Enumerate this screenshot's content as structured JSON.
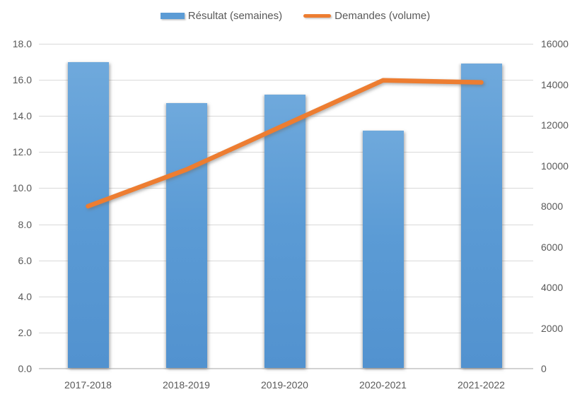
{
  "chart_data": {
    "type": "combo",
    "title": "",
    "categories": [
      "2017-2018",
      "2018-2019",
      "2019-2020",
      "2020-2021",
      "2021-2022"
    ],
    "series": [
      {
        "name": "Résultat (semaines)",
        "type": "bar",
        "axis": "left",
        "color": "#5B9BD5",
        "values": [
          17.0,
          14.7,
          15.2,
          13.2,
          16.9
        ]
      },
      {
        "name": "Demandes (volume)",
        "type": "line",
        "axis": "right",
        "color": "#ED7D31",
        "values": [
          8000,
          9800,
          12000,
          14200,
          14100
        ]
      }
    ],
    "left_axis": {
      "min": 0,
      "max": 18,
      "step": 2,
      "ticks": [
        "18.0",
        "16.0",
        "14.0",
        "12.0",
        "10.0",
        "8.0",
        "6.0",
        "4.0",
        "2.0",
        "0.0"
      ]
    },
    "right_axis": {
      "min": 0,
      "max": 16000,
      "step": 2000,
      "ticks": [
        "16000",
        "14000",
        "12000",
        "10000",
        "8000",
        "6000",
        "4000",
        "2000",
        "0"
      ]
    },
    "legend_position": "top",
    "grid": true,
    "colors": {
      "grid": "#D9D9D9",
      "axis_line": "#D2D2D2",
      "label": "#595959",
      "bar": "#5B9BD5",
      "line": "#ED7D31"
    }
  }
}
